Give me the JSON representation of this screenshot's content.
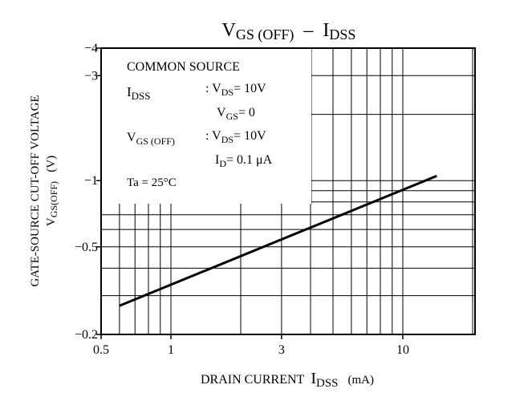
{
  "chart_data": {
    "type": "line",
    "title": {
      "main": "V",
      "main_sub": "GS (OFF)",
      "sep": "–",
      "right": "I",
      "right_sub": "DSS"
    },
    "x_axis": {
      "scale": "log",
      "range": [
        0.5,
        20
      ],
      "ticks": [
        0.5,
        1,
        3,
        10
      ],
      "tick_labels": [
        "0.5",
        "1",
        "3",
        "10"
      ],
      "label_text": "DRAIN CURRENT",
      "label_symbol": "I",
      "label_symbol_sub": "DSS",
      "label_unit": "(mA)",
      "gridlines": [
        0.6,
        0.7,
        0.8,
        0.9,
        1,
        2,
        3,
        4,
        5,
        6,
        7,
        8,
        9,
        10,
        20
      ]
    },
    "y_axis": {
      "scale": "log",
      "range": [
        -0.2,
        -4
      ],
      "ticks": [
        -0.2,
        -0.5,
        -1,
        -3,
        -4
      ],
      "tick_labels": [
        "−0.2",
        "−0.5",
        "−1",
        "−3",
        "−4"
      ],
      "label_line1": "GATE-SOURCE CUT-OFF VOLTAGE",
      "label_line2_symbol": "V",
      "label_line2_sub": "GS(OFF)",
      "label_line2_unit": "(V)",
      "gridlines": [
        -0.3,
        -0.4,
        -0.5,
        -0.6,
        -0.7,
        -0.8,
        -0.9,
        -1,
        -2,
        -3,
        -4
      ]
    },
    "series": [
      {
        "x": [
          0.6,
          14
        ],
        "y": [
          -0.27,
          -1.05
        ]
      }
    ],
    "grid": true,
    "annotation": {
      "line1": "COMMON SOURCE",
      "idss_sym": "I",
      "idss_sub": "DSS",
      "idss_cond1_pre": ": V",
      "idss_cond1_sub": "DS",
      "idss_cond1_val": "= 10V",
      "idss_cond2_pre": "V",
      "idss_cond2_sub": "GS",
      "idss_cond2_val": "= 0",
      "vgs_sym": "V",
      "vgs_sub": "GS (OFF)",
      "vgs_cond1_pre": ": V",
      "vgs_cond1_sub": "DS",
      "vgs_cond1_val": "= 10V",
      "vgs_cond2_pre": "I",
      "vgs_cond2_sub": "D",
      "vgs_cond2_val": "= 0.1 μA",
      "ta": "Ta = 25°C"
    }
  }
}
